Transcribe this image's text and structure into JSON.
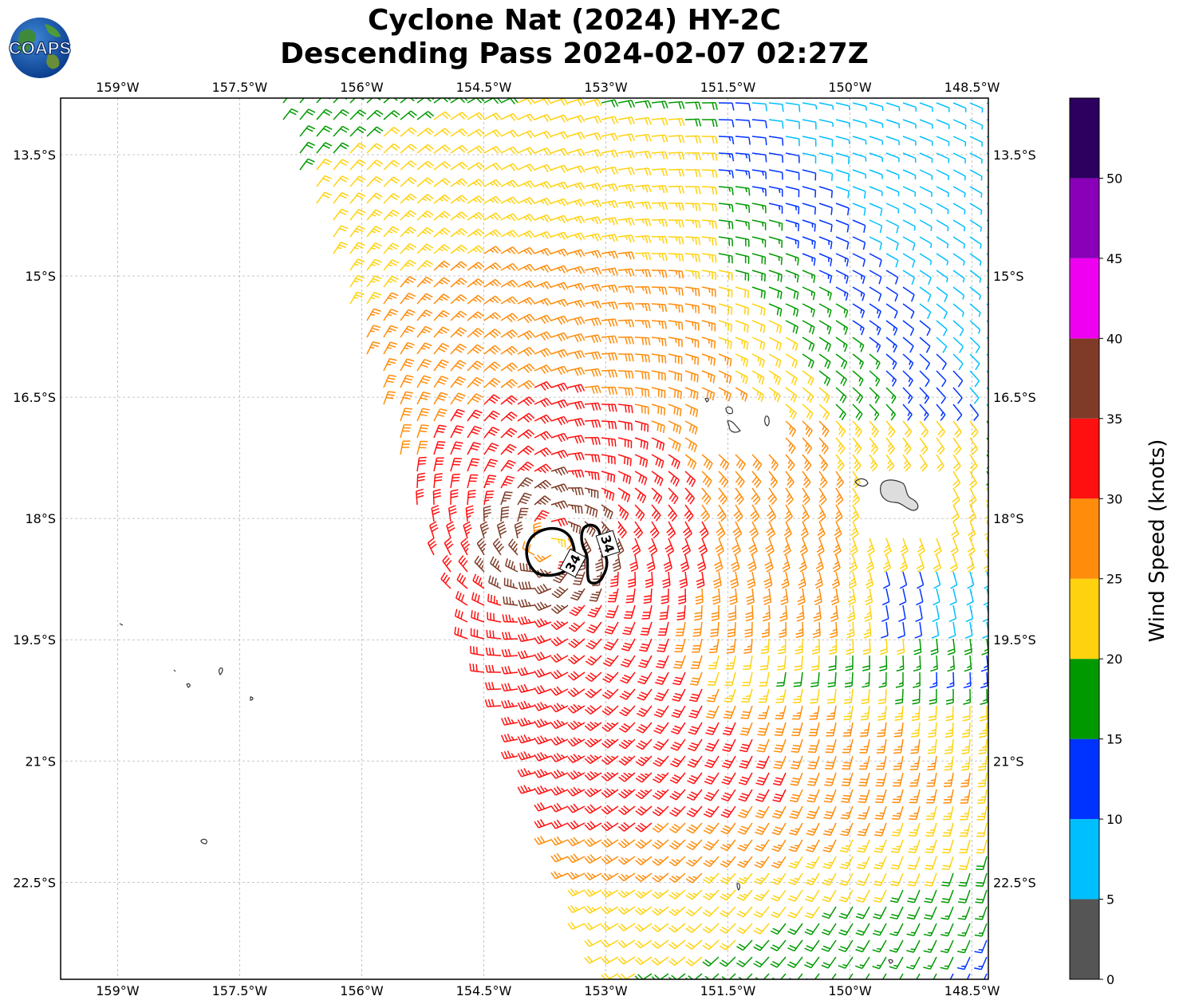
{
  "title": {
    "line1": "Cyclone Nat (2024) HY-2C",
    "line2": "Descending Pass 2024-02-07 02:27Z"
  },
  "logo": {
    "text": "COAPS",
    "icon": "globe-icon"
  },
  "map": {
    "lon_range": [
      -159.7,
      -148.3
    ],
    "lat_range": [
      -23.7,
      -12.8
    ],
    "lon_ticks": [
      {
        "value": -159.0,
        "label": "159°W"
      },
      {
        "value": -157.5,
        "label": "157.5°W"
      },
      {
        "value": -156.0,
        "label": "156°W"
      },
      {
        "value": -154.5,
        "label": "154.5°W"
      },
      {
        "value": -153.0,
        "label": "153°W"
      },
      {
        "value": -151.5,
        "label": "151.5°W"
      },
      {
        "value": -150.0,
        "label": "150°W"
      },
      {
        "value": -148.5,
        "label": "148.5°W"
      }
    ],
    "lat_ticks": [
      {
        "value": -13.5,
        "label": "13.5°S"
      },
      {
        "value": -15.0,
        "label": "15°S"
      },
      {
        "value": -16.5,
        "label": "16.5°S"
      },
      {
        "value": -18.0,
        "label": "18°S"
      },
      {
        "value": -19.5,
        "label": "19.5°S"
      },
      {
        "value": -21.0,
        "label": "21°S"
      },
      {
        "value": -22.5,
        "label": "22.5°S"
      }
    ],
    "grid": true,
    "cyclone_center": {
      "lon": -153.7,
      "lat": -18.3
    },
    "contour": {
      "level": 34,
      "label": "34",
      "color": "#000000"
    },
    "swath_note": "winds from scatterometer swath"
  },
  "colorbar": {
    "label": "Wind Speed (knots)",
    "tick_labels": [
      "0",
      "5",
      "10",
      "15",
      "20",
      "25",
      "30",
      "35",
      "40",
      "45",
      "50"
    ],
    "bins": [
      {
        "min": 0,
        "max": 5,
        "color": "#555555"
      },
      {
        "min": 5,
        "max": 10,
        "color": "#00bfff"
      },
      {
        "min": 10,
        "max": 15,
        "color": "#0033ff"
      },
      {
        "min": 15,
        "max": 20,
        "color": "#009a00"
      },
      {
        "min": 20,
        "max": 25,
        "color": "#ffd20f"
      },
      {
        "min": 25,
        "max": 30,
        "color": "#ff8c0a"
      },
      {
        "min": 30,
        "max": 35,
        "color": "#ff1010"
      },
      {
        "min": 35,
        "max": 40,
        "color": "#7f3b28"
      },
      {
        "min": 40,
        "max": 45,
        "color": "#f000f0"
      },
      {
        "min": 45,
        "max": 50,
        "color": "#8a00b8"
      },
      {
        "min": 50,
        "max": 55,
        "color": "#2d0060"
      }
    ]
  }
}
